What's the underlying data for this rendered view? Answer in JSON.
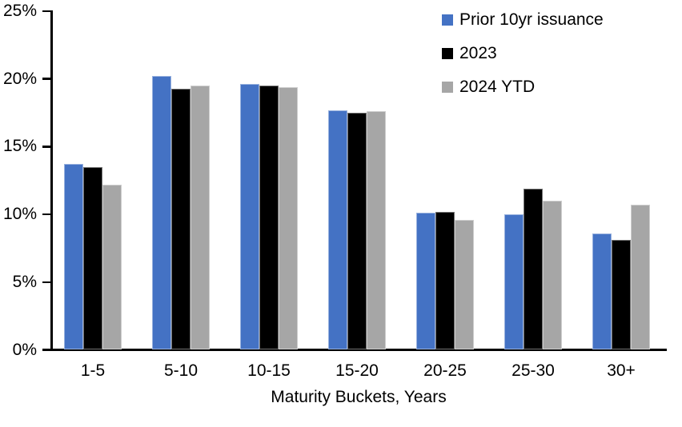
{
  "chart_data": {
    "type": "bar",
    "title": "",
    "xlabel": "Maturity Buckets, Years",
    "ylabel": "",
    "ylim": [
      0,
      25
    ],
    "grid": false,
    "legend_position": "top-right",
    "y_axis": {
      "tick_format": "percent",
      "ticks": [
        {
          "label": "25%",
          "value": 25
        },
        {
          "label": "20%",
          "value": 20
        },
        {
          "label": "15%",
          "value": 15
        },
        {
          "label": "10%",
          "value": 10
        },
        {
          "label": "5%",
          "value": 5
        },
        {
          "label": "0%",
          "value": 0
        }
      ]
    },
    "categories": [
      "1-5",
      "5-10",
      "10-15",
      "15-20",
      "20-25",
      "25-30",
      "30+"
    ],
    "series": [
      {
        "name": "Prior 10yr issuance",
        "color": "#4472C4",
        "values": [
          13.7,
          20.2,
          19.6,
          17.7,
          10.1,
          10.0,
          8.6
        ]
      },
      {
        "name": "2023",
        "color": "#000000",
        "values": [
          13.5,
          19.3,
          19.5,
          17.5,
          10.2,
          11.9,
          8.1
        ]
      },
      {
        "name": "2024 YTD",
        "color": "#A6A6A6",
        "values": [
          12.2,
          19.5,
          19.4,
          17.6,
          9.6,
          11.0,
          10.7
        ]
      }
    ]
  }
}
